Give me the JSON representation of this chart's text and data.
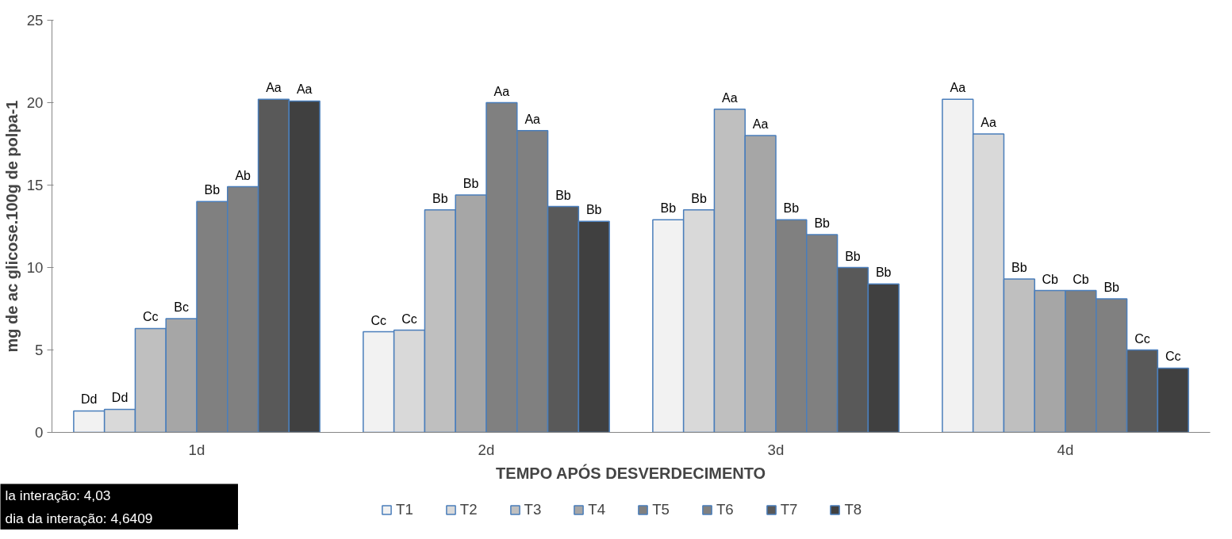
{
  "chart_data": {
    "type": "bar",
    "xlabel": "TEMPO APÓS DESVERDECIMENTO",
    "ylabel": "mg de ac glicose.100g de polpa-1",
    "categories": [
      "1d",
      "2d",
      "3d",
      "4d"
    ],
    "series": [
      {
        "name": "T1",
        "color": "#f2f2f2",
        "values": [
          1.3,
          6.1,
          12.9,
          20.2
        ],
        "value_labels": [
          "Dd",
          "Cc",
          "Bb",
          "Aa"
        ]
      },
      {
        "name": "T2",
        "color": "#d9d9d9",
        "values": [
          1.4,
          6.2,
          13.5,
          18.1
        ],
        "value_labels": [
          "Dd",
          "Cc",
          "Bb",
          "Aa"
        ]
      },
      {
        "name": "T3",
        "color": "#bfbfbf",
        "values": [
          6.3,
          13.5,
          19.6,
          9.3
        ],
        "value_labels": [
          "Cc",
          "Bb",
          "Aa",
          "Bb"
        ]
      },
      {
        "name": "T4",
        "color": "#a6a6a6",
        "values": [
          6.9,
          14.4,
          18.0,
          8.6
        ],
        "value_labels": [
          "Bc",
          "Bb",
          "Aa",
          "Cb"
        ]
      },
      {
        "name": "T5",
        "color": "#808080",
        "values": [
          14.0,
          20.0,
          12.9,
          8.6
        ],
        "value_labels": [
          "Bb",
          "Aa",
          "Bb",
          "Cb"
        ]
      },
      {
        "name": "T6",
        "color": "#808080",
        "values": [
          14.9,
          18.3,
          12.0,
          8.1
        ],
        "value_labels": [
          "Ab",
          "Aa",
          "Bb",
          "Bb"
        ]
      },
      {
        "name": "T7",
        "color": "#595959",
        "values": [
          20.2,
          13.7,
          10.0,
          5.0
        ],
        "value_labels": [
          "Aa",
          "Bb",
          "Bb",
          "Cc"
        ]
      },
      {
        "name": "T8",
        "color": "#404040",
        "values": [
          20.1,
          12.8,
          9.0,
          3.9
        ],
        "value_labels": [
          "Aa",
          "Bb",
          "Bb",
          "Cc"
        ]
      }
    ],
    "ylim": [
      0,
      25
    ],
    "yticks": [
      0,
      5,
      10,
      15,
      20,
      25
    ],
    "grid": false,
    "legend": "bottom",
    "annotations": [
      "la interação: 4,03",
      "dia da interação: 4,6409"
    ]
  }
}
